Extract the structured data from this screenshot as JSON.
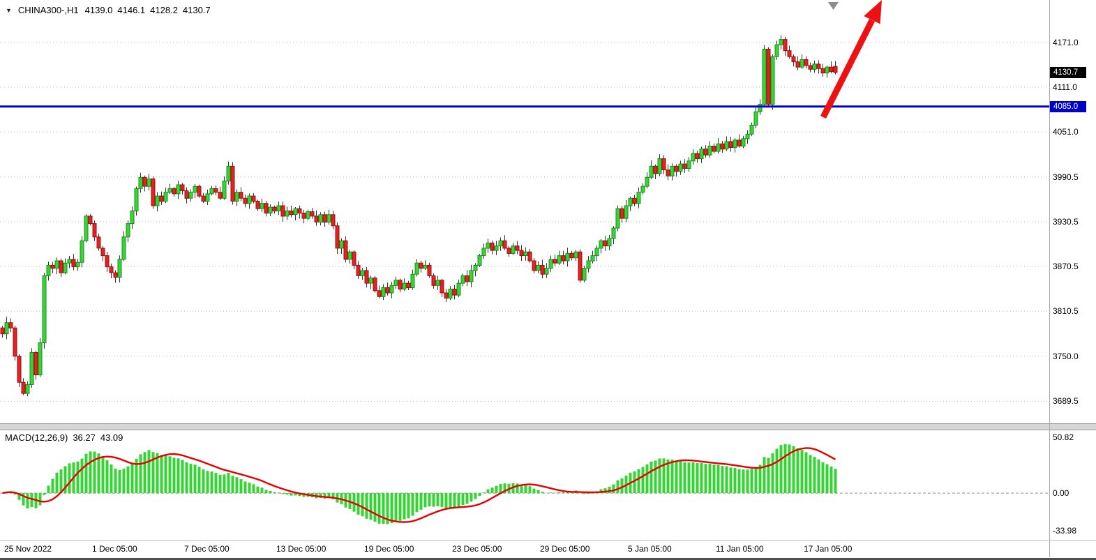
{
  "header": {
    "symbol_timeframe": "CHINA300-,H1",
    "open": "4139.0",
    "high": "4146.1",
    "low": "4128.2",
    "close": "4130.7"
  },
  "icons": {
    "symbol_marker": "▼"
  },
  "colors": {
    "background": "#ffffff",
    "grid": "#b6bac9",
    "bull": "#3bd33b",
    "bull_border": "#169016",
    "bear": "#e32222",
    "bear_border": "#9c0f0f",
    "wick": "#333333",
    "macd_histogram": "#35d435",
    "macd_signal": "#e80000",
    "hline": "#0000cc",
    "current_price_badge_bg": "#000000",
    "hline_badge_bg": "#0000cc",
    "badge_text": "#ffffff",
    "axis_text": "#000000",
    "arrow": "#ee1111",
    "shift_marker": "#8c8c8c",
    "separator": "#d6d6d6",
    "bottom_strip": "#4f4f4f"
  },
  "chart_data": {
    "type": "candlestick",
    "title": "CHINA300-,H1",
    "symbol": "CHINA300-",
    "timeframe": "H1",
    "ylim_estimate": [
      3660,
      4228
    ],
    "current_price": 4130.7,
    "horizontal_line_price": 4085.0,
    "last_candle": {
      "open": 4139.0,
      "high": 4146.1,
      "low": 4128.2,
      "close": 4130.7
    },
    "closes": [
      3780,
      3795,
      3788,
      3750,
      3715,
      3700,
      3712,
      3755,
      3725,
      3768,
      3858,
      3872,
      3868,
      3878,
      3862,
      3875,
      3880,
      3870,
      3876,
      3905,
      3938,
      3928,
      3910,
      3895,
      3885,
      3870,
      3862,
      3856,
      3880,
      3910,
      3928,
      3945,
      3975,
      3990,
      3978,
      3988,
      3952,
      3965,
      3958,
      3970,
      3975,
      3968,
      3980,
      3972,
      3962,
      3970,
      3978,
      3965,
      3958,
      3968,
      3975,
      3970,
      3962,
      3985,
      4005,
      3958,
      3970,
      3962,
      3955,
      3965,
      3958,
      3948,
      3955,
      3942,
      3950,
      3945,
      3952,
      3938,
      3945,
      3940,
      3948,
      3942,
      3935,
      3944,
      3938,
      3930,
      3940,
      3930,
      3940,
      3925,
      3895,
      3905,
      3880,
      3890,
      3872,
      3858,
      3865,
      3848,
      3855,
      3838,
      3830,
      3842,
      3835,
      3845,
      3852,
      3840,
      3848,
      3842,
      3860,
      3875,
      3868,
      3872,
      3858,
      3845,
      3852,
      3835,
      3828,
      3840,
      3832,
      3848,
      3858,
      3850,
      3865,
      3872,
      3885,
      3895,
      3902,
      3892,
      3898,
      3905,
      3895,
      3888,
      3898,
      3892,
      3885,
      3890,
      3878,
      3865,
      3872,
      3860,
      3868,
      3880,
      3875,
      3885,
      3878,
      3888,
      3882,
      3890,
      3852,
      3868,
      3878,
      3885,
      3895,
      3905,
      3898,
      3908,
      3922,
      3948,
      3935,
      3952,
      3962,
      3955,
      3970,
      3978,
      3990,
      4005,
      3995,
      4015,
      4000,
      3992,
      4005,
      3998,
      4008,
      4002,
      4012,
      4022,
      4015,
      4028,
      4020,
      4032,
      4025,
      4035,
      4028,
      4038,
      4030,
      4040,
      4032,
      4042,
      4048,
      4060,
      4078,
      4088,
      4162,
      4088,
      4152,
      4168,
      4175,
      4160,
      4152,
      4145,
      4138,
      4148,
      4140,
      4135,
      4142,
      4136,
      4130,
      4138,
      4132,
      4130.7
    ],
    "price_axis": {
      "labels": [
        {
          "value": 4171.0,
          "text": "4171.0"
        },
        {
          "value": 4111.0,
          "text": "4111.0"
        },
        {
          "value": 4051.0,
          "text": "4051.0"
        },
        {
          "value": 3990.5,
          "text": "3990.5"
        },
        {
          "value": 3930.5,
          "text": "3930.5"
        },
        {
          "value": 3870.5,
          "text": "3870.5"
        },
        {
          "value": 3810.5,
          "text": "3810.5"
        },
        {
          "value": 3750.0,
          "text": "3750.0"
        },
        {
          "value": 3689.5,
          "text": "3689.5"
        }
      ],
      "current": {
        "value": 4130.7,
        "text": "4130.7"
      },
      "level": {
        "value": 4085.0,
        "text": "4085.0"
      }
    },
    "time_axis": [
      {
        "bar": 1,
        "text": "25 Nov 2022"
      },
      {
        "bar": 22,
        "text": "1 Dec 05:00"
      },
      {
        "bar": 44,
        "text": "7 Dec 05:00"
      },
      {
        "bar": 66,
        "text": "13 Dec 05:00"
      },
      {
        "bar": 87,
        "text": "19 Dec 05:00"
      },
      {
        "bar": 108,
        "text": "23 Dec 05:00"
      },
      {
        "bar": 129,
        "text": "29 Dec 05:00"
      },
      {
        "bar": 150,
        "text": "5 Jan 05:00"
      },
      {
        "bar": 171,
        "text": "11 Jan 05:00"
      },
      {
        "bar": 192,
        "text": "17 Jan 05:00"
      }
    ],
    "macd": {
      "label": "MACD(12,26,9)",
      "fast": 12,
      "slow": 26,
      "signal": 9,
      "main_value": "36.27",
      "signal_value": "43.09",
      "axis_labels": [
        {
          "value": 50.82,
          "text": "50.82"
        },
        {
          "value": 0,
          "text": "0.00"
        },
        {
          "value": -33.98,
          "text": "-33.98"
        }
      ]
    }
  }
}
